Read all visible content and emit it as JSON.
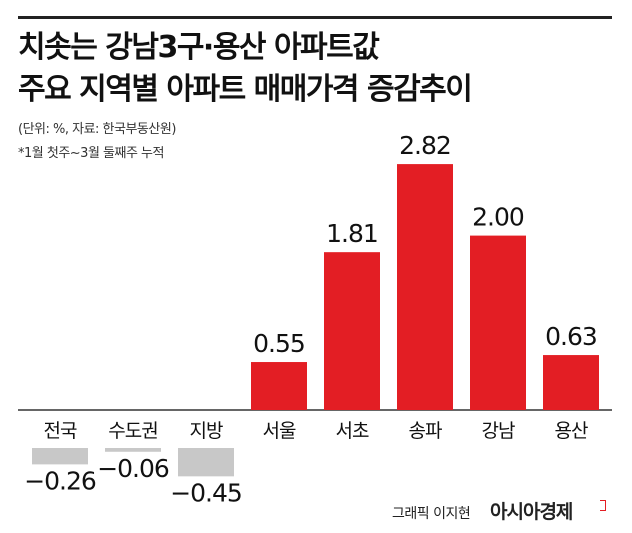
{
  "header": {
    "title_line1": "치솟는 강남3구·용산 아파트값",
    "title_line2": "주요 지역별 아파트 매매가격 증감추이",
    "note_unit": "(단위: %, 자료: 한국부동산원)",
    "note_period": "*1월 첫주~3월 둘째주 누적"
  },
  "chart_data": {
    "type": "bar",
    "categories": [
      "전국",
      "수도권",
      "지방",
      "서울",
      "서초",
      "송파",
      "강남",
      "용산"
    ],
    "values": [
      -0.26,
      -0.06,
      -0.45,
      0.55,
      1.81,
      2.82,
      2.0,
      0.63
    ],
    "value_labels": [
      "−0.26",
      "−0.06",
      "−0.45",
      "0.55",
      "1.81",
      "2.82",
      "2.00",
      "0.63"
    ],
    "colors": {
      "positive": "#e31e24",
      "negative": "#c8c8c8",
      "baseline": "#333333"
    },
    "ylim": [
      -0.5,
      3.0
    ],
    "grid": false,
    "legend": false
  },
  "footer": {
    "credit": "그래픽 이지현",
    "logo": "아시아경제"
  }
}
